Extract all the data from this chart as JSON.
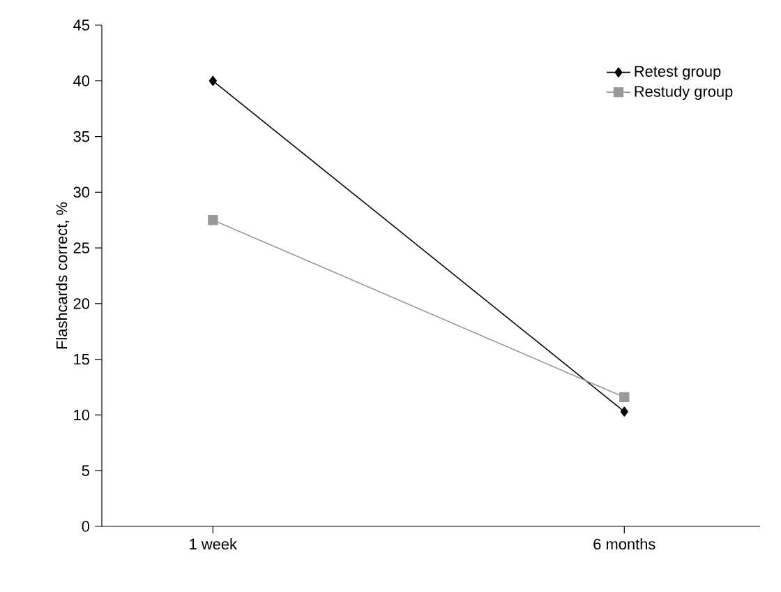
{
  "chart_data": {
    "type": "line",
    "ylabel": "Flashcards correct, %",
    "categories": [
      "1 week",
      "6 months"
    ],
    "series": [
      {
        "name": "Retest group",
        "color": "#000000",
        "marker": "diamond",
        "values": [
          40,
          10.3
        ]
      },
      {
        "name": "Restudy group",
        "color": "#999999",
        "marker": "square",
        "values": [
          27.5,
          11.6
        ]
      }
    ],
    "ylim": [
      0,
      45
    ],
    "yticks": [
      0,
      5,
      10,
      15,
      20,
      25,
      30,
      35,
      40,
      45
    ],
    "legend": "top right",
    "grid": false
  }
}
